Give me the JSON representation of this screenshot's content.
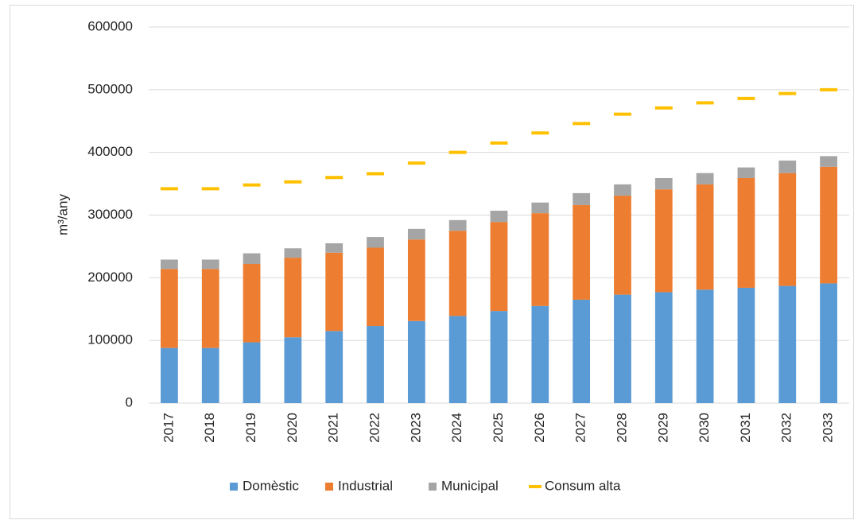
{
  "chart_data": {
    "type": "bar",
    "y_label": "m³/any",
    "categories": [
      "2017",
      "2018",
      "2019",
      "2020",
      "2021",
      "2022",
      "2023",
      "2024",
      "2025",
      "2026",
      "2027",
      "2028",
      "2029",
      "2030",
      "2031",
      "2032",
      "2033"
    ],
    "series": [
      {
        "name": "Domèstic",
        "color": "#5b9bd5",
        "values": [
          88000,
          88000,
          97000,
          105000,
          115000,
          123000,
          131000,
          139000,
          147000,
          155000,
          165000,
          173000,
          177000,
          181000,
          184000,
          187000,
          191000
        ]
      },
      {
        "name": "Industrial",
        "color": "#ed7d31",
        "values": [
          126000,
          126000,
          125000,
          127000,
          125000,
          125000,
          130000,
          136000,
          142000,
          148000,
          151000,
          158000,
          164000,
          168000,
          175000,
          180000,
          186000
        ]
      },
      {
        "name": "Municipal",
        "color": "#a5a5a5",
        "values": [
          15000,
          15000,
          17000,
          15000,
          15000,
          17000,
          17000,
          17000,
          18000,
          17000,
          19000,
          18000,
          18000,
          18000,
          17000,
          20000,
          17000
        ]
      },
      {
        "name": "Consum alta",
        "color": "#ffc000",
        "type": "marker",
        "values": [
          342000,
          342000,
          348000,
          353000,
          360000,
          366000,
          383000,
          400000,
          415000,
          431000,
          446000,
          461000,
          471000,
          479000,
          486000,
          494000,
          500000
        ]
      }
    ],
    "stacked": true,
    "ylim": [
      0,
      600000
    ],
    "yticks": [
      0,
      100000,
      200000,
      300000,
      400000,
      500000,
      600000
    ],
    "grid": true,
    "legend": "bottom"
  }
}
